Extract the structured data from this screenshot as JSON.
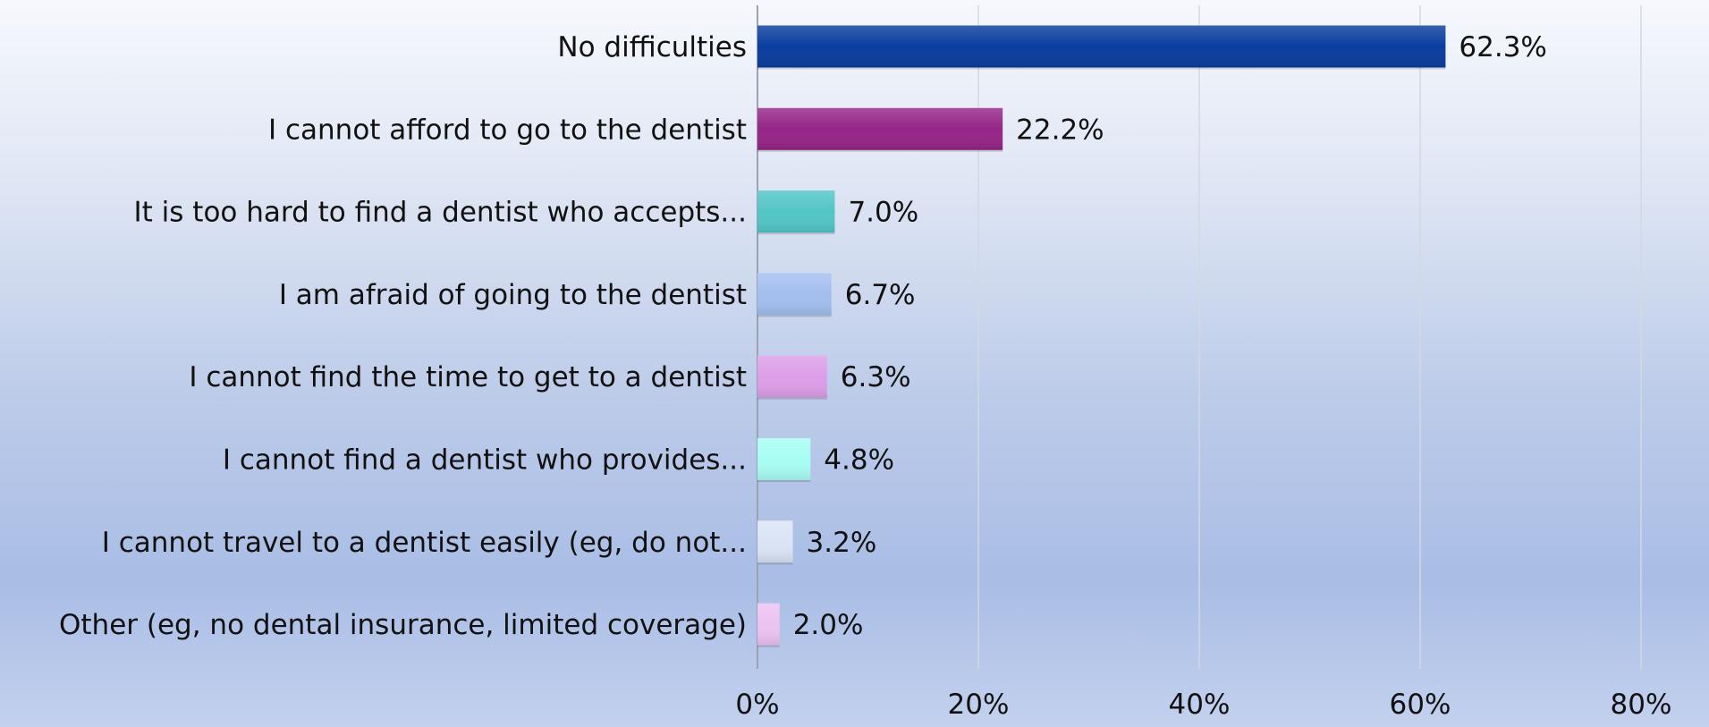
{
  "chart_data": {
    "type": "bar",
    "orientation": "horizontal",
    "categories": [
      "No difficulties",
      "I cannot afford to go to the dentist",
      "It is too hard to find a dentist who accepts...",
      "I am afraid of going to the dentist",
      "I cannot find the time to get to a dentist",
      "I cannot find a dentist who provides...",
      "I cannot travel to a dentist easily (eg, do not...",
      "Other (eg, no dental insurance, limited coverage)"
    ],
    "values": [
      62.3,
      22.2,
      7.0,
      6.7,
      6.3,
      4.8,
      3.2,
      2.0
    ],
    "data_labels": [
      "62.3%",
      "22.2%",
      "7.0%",
      "6.7%",
      "6.3%",
      "4.8%",
      "3.2%",
      "2.0%"
    ],
    "colors": [
      "#0a3d9e",
      "#962587",
      "#52c5c7",
      "#a3bff0",
      "#dc9ee8",
      "#a8fdf3",
      "#dae4f6",
      "#ebc3f2"
    ],
    "xlim": [
      0,
      80
    ],
    "xticks": [
      0,
      20,
      40,
      60,
      80
    ],
    "xtick_labels": [
      "0%",
      "20%",
      "40%",
      "60%",
      "80%"
    ],
    "grid": true,
    "title": "",
    "xlabel": "",
    "ylabel": "",
    "legend": "none"
  }
}
